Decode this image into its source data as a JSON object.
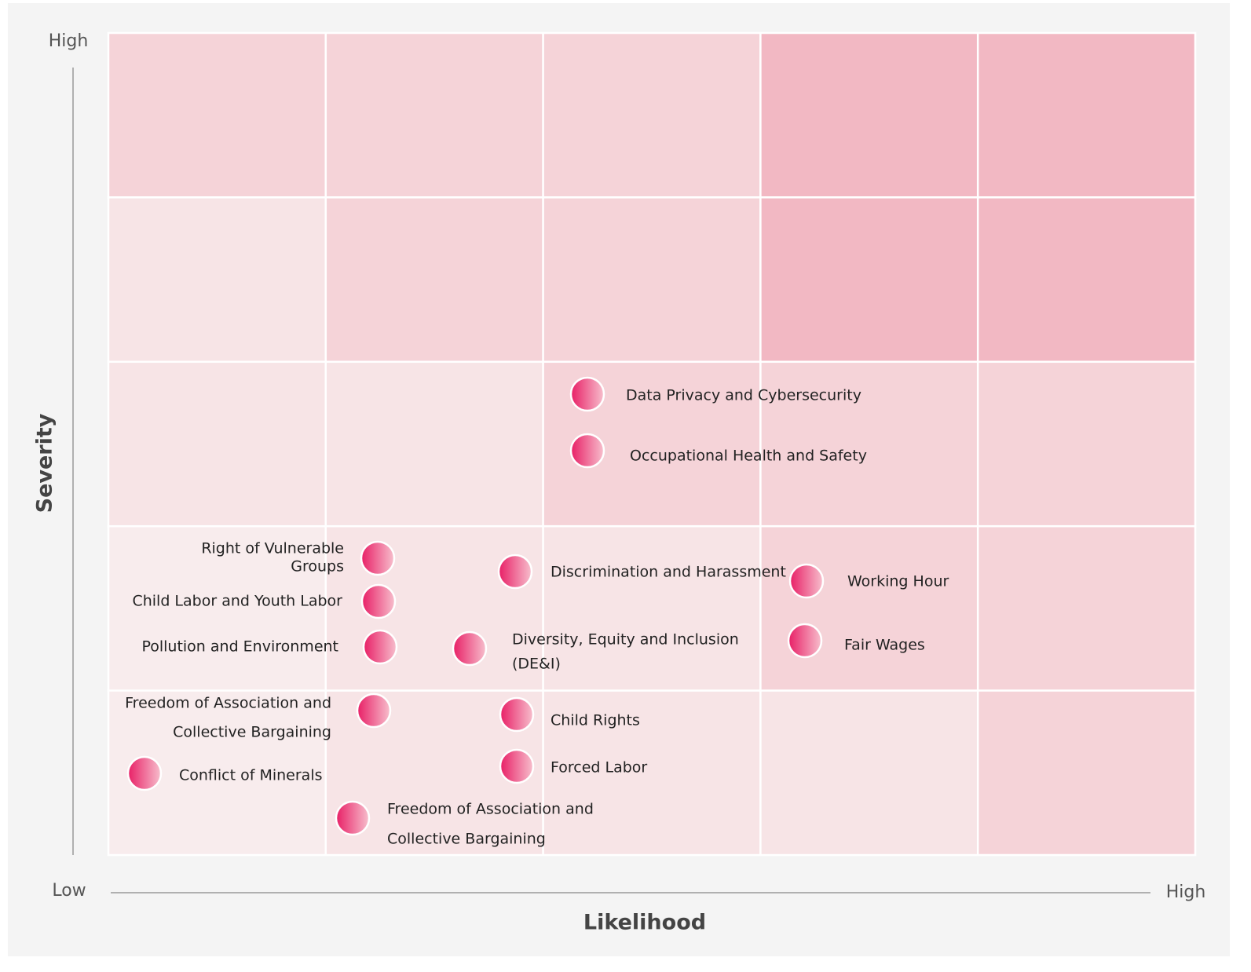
{
  "y_axis": {
    "title": "Severity",
    "high": "High"
  },
  "x_axis": {
    "title": "Likelihood",
    "low": "Low",
    "high": "High"
  },
  "items": [
    {
      "lines": [
        "Data Privacy and Cybersecurity"
      ]
    },
    {
      "lines": [
        "Occupational Health and Safety"
      ]
    },
    {
      "lines": [
        "Right of Vulnerable",
        "Groups"
      ]
    },
    {
      "lines": [
        "Discrimination and Harassment"
      ]
    },
    {
      "lines": [
        "Working Hour"
      ]
    },
    {
      "lines": [
        "Child Labor and Youth Labor"
      ]
    },
    {
      "lines": [
        "Pollution and Environment"
      ]
    },
    {
      "lines": [
        "Diversity, Equity and Inclusion",
        "(DE&I)"
      ]
    },
    {
      "lines": [
        "Fair Wages"
      ]
    },
    {
      "lines": [
        "Freedom of Association and",
        "Collective Bargaining"
      ]
    },
    {
      "lines": [
        "Child Rights"
      ]
    },
    {
      "lines": [
        "Conflict of Minerals"
      ]
    },
    {
      "lines": [
        "Forced Labor"
      ]
    },
    {
      "lines": [
        "Freedom of Association and",
        "Collective Bargaining"
      ]
    }
  ]
}
